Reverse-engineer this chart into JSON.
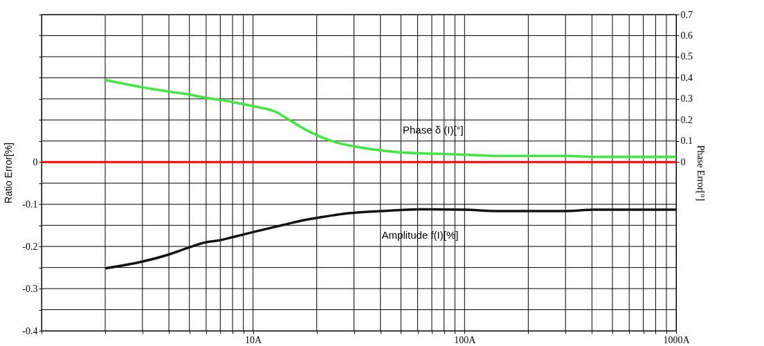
{
  "chart_data": {
    "type": "line",
    "ylabel": "Ratio Error[%]",
    "y2label": "Phase Error[°]",
    "log": "x",
    "grid": true,
    "xlim": [
      1,
      1000
    ],
    "xticks": [
      {
        "value": 1,
        "label": null
      },
      {
        "value": 2,
        "label": null
      },
      {
        "value": 3,
        "label": null
      },
      {
        "value": 4,
        "label": null
      },
      {
        "value": 5,
        "label": null
      },
      {
        "value": 6,
        "label": null
      },
      {
        "value": 7,
        "label": null
      },
      {
        "value": 8,
        "label": null
      },
      {
        "value": 9,
        "label": null
      },
      {
        "value": 10,
        "label": "10A"
      },
      {
        "value": 20,
        "label": null
      },
      {
        "value": 30,
        "label": null
      },
      {
        "value": 40,
        "label": null
      },
      {
        "value": 50,
        "label": null
      },
      {
        "value": 60,
        "label": null
      },
      {
        "value": 70,
        "label": null
      },
      {
        "value": 80,
        "label": null
      },
      {
        "value": 90,
        "label": null
      },
      {
        "value": 100,
        "label": "100A"
      },
      {
        "value": 200,
        "label": null
      },
      {
        "value": 300,
        "label": null
      },
      {
        "value": 400,
        "label": null
      },
      {
        "value": 500,
        "label": null
      },
      {
        "value": 600,
        "label": null
      },
      {
        "value": 700,
        "label": null
      },
      {
        "value": 800,
        "label": null
      },
      {
        "value": 900,
        "label": null
      },
      {
        "value": 1000,
        "label": "1000A"
      }
    ],
    "ylim": [
      -0.4,
      0.35
    ],
    "yticks": [
      -0.4,
      {
        "value": -0.35,
        "label": null
      },
      -0.3,
      {
        "value": -0.25,
        "label": null
      },
      -0.2,
      {
        "value": -0.15,
        "label": null
      },
      -0.1,
      {
        "value": -0.05,
        "label": null
      },
      0,
      {
        "value": 0.05,
        "label": null
      },
      {
        "value": 0.1,
        "label": null
      },
      {
        "value": 0.15,
        "label": null
      },
      {
        "value": 0.2,
        "label": null
      },
      {
        "value": 0.25,
        "label": null
      },
      {
        "value": 0.3,
        "label": null
      },
      {
        "value": 0.35,
        "label": null
      }
    ],
    "y2lim": [
      -0.8,
      0.7
    ],
    "y2ticks": [
      0,
      0.1,
      0.2,
      0.3,
      0.4,
      0.5,
      0.6,
      0.7
    ],
    "ref_lines": [
      {
        "axis": "y",
        "value": 0,
        "color": "#ff0000"
      }
    ],
    "series": [
      {
        "name": "Phase δ (I)[°]",
        "color": "#3ee83e",
        "axis": "y2",
        "x": [
          2,
          3,
          4,
          5,
          6,
          7,
          8,
          9,
          10,
          13,
          14.3,
          16.6,
          19.3,
          24.4,
          30,
          40.6,
          51,
          71,
          100,
          142,
          205,
          303,
          408,
          1000
        ],
        "values": [
          0.39,
          0.355,
          0.335,
          0.32,
          0.305,
          0.295,
          0.285,
          0.275,
          0.265,
          0.235,
          0.21,
          0.17,
          0.135,
          0.095,
          0.075,
          0.055,
          0.045,
          0.04,
          0.035,
          0.03,
          0.03,
          0.03,
          0.025,
          0.025
        ]
      },
      {
        "name": "Amplitude f(I)[%]",
        "color": "#111111",
        "x": [
          2,
          3,
          4,
          5,
          6,
          7,
          8,
          10,
          13.9,
          16.2,
          20.8,
          30,
          40.6,
          61.6,
          100,
          142,
          303,
          408,
          1000
        ],
        "values": [
          -0.252,
          -0.236,
          -0.219,
          -0.202,
          -0.19,
          -0.185,
          -0.178,
          -0.166,
          -0.149,
          -0.141,
          -0.131,
          -0.12,
          -0.116,
          -0.112,
          -0.113,
          -0.116,
          -0.116,
          -0.113,
          -0.113
        ]
      }
    ]
  }
}
